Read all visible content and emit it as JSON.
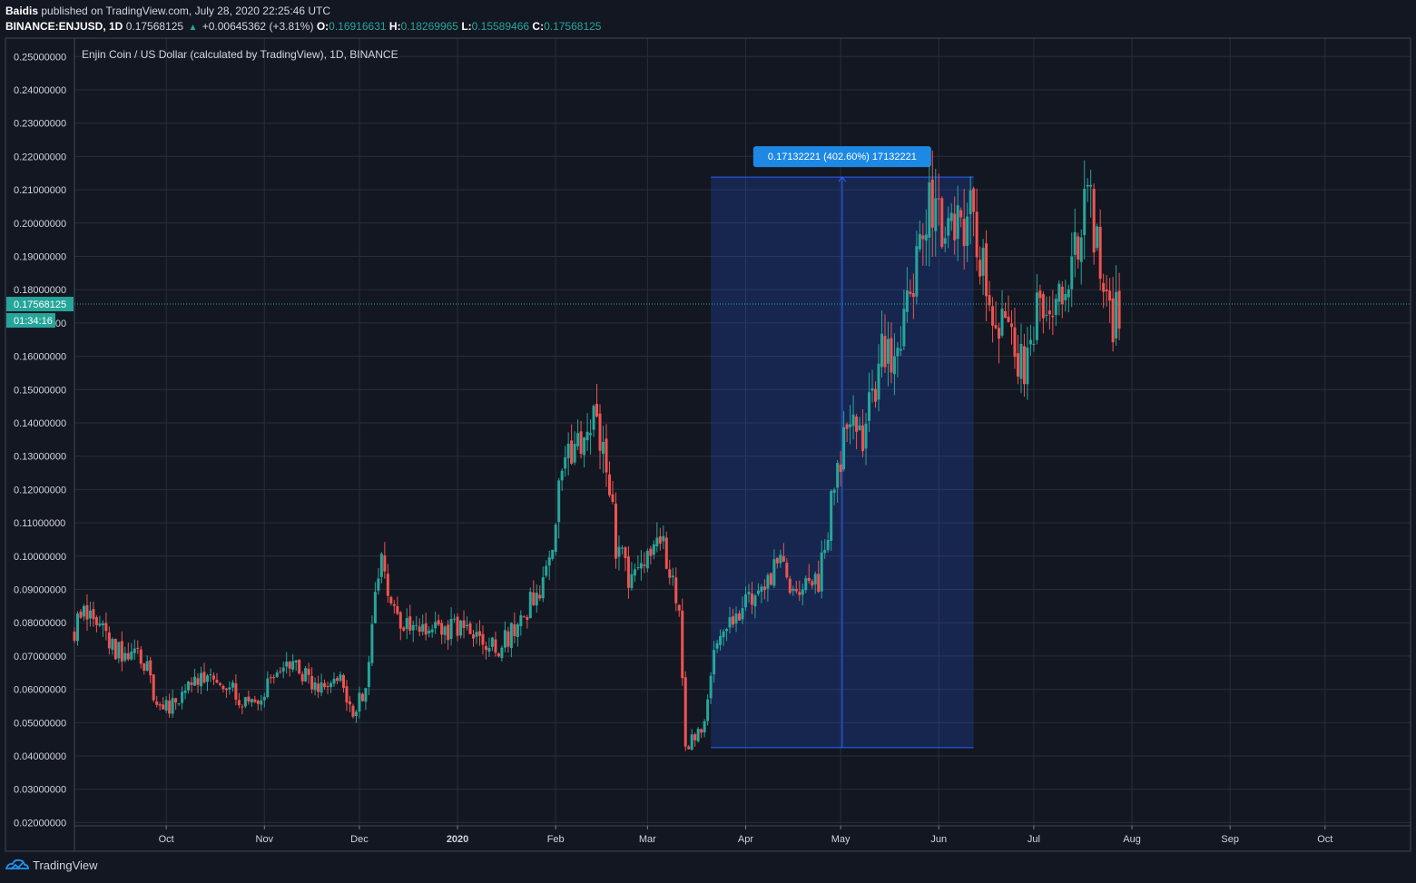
{
  "header": {
    "author": "Baidis",
    "published_text": "published on TradingView.com, July 28, 2020 22:25:46 UTC",
    "symbol": "BINANCE:ENJUSD, 1D",
    "price": "0.17568125",
    "change": "+0.00645362 (+3.81%)",
    "o_label": "O:",
    "o_value": "0.16916631",
    "h_label": "H:",
    "h_value": "0.18269965",
    "l_label": "L:",
    "l_value": "0.15589466",
    "c_label": "C:",
    "c_value": "0.17568125"
  },
  "footer": {
    "brand": "TradingView"
  },
  "colors": {
    "up": "#26a69a",
    "down": "#ef5350",
    "background": "#131722",
    "grid": "#2a2e39",
    "measure": "#2962ff"
  },
  "chart_data": {
    "type": "candlestick",
    "title": "Enjin Coin / US Dollar (calculated by TradingView), 1D, BINANCE",
    "x_labels": [
      "Oct",
      "Nov",
      "Dec",
      "2020",
      "Feb",
      "Mar",
      "Apr",
      "May",
      "Jun",
      "Jul",
      "Aug",
      "Sep",
      "Oct"
    ],
    "x_range": [
      "2019-09-02",
      "2020-10-28"
    ],
    "y_ticks": [
      "0.25000000",
      "0.24000000",
      "0.23000000",
      "0.22000000",
      "0.21000000",
      "0.20000000",
      "0.19000000",
      "0.18000000",
      "0.17000000",
      "0.16000000",
      "0.15000000",
      "0.14000000",
      "0.13000000",
      "0.12000000",
      "0.11000000",
      "0.10000000",
      "0.09000000",
      "0.08000000",
      "0.07000000",
      "0.06000000",
      "0.05000000",
      "0.04000000",
      "0.03000000",
      "0.02000000"
    ],
    "ylim": [
      0.02,
      0.25
    ],
    "current_price": "0.17568125",
    "countdown": "01:34:16",
    "measure": {
      "label": "0.17132221 (402.60%) 17132221",
      "from_date": "2020-03-21",
      "to_date": "2020-06-12",
      "low": 0.0425,
      "high": 0.2138
    },
    "grid": true,
    "price_path": [
      {
        "date": "2019-09-02",
        "price": 0.0775
      },
      {
        "date": "2019-09-05",
        "price": 0.083
      },
      {
        "date": "2019-09-09",
        "price": 0.081
      },
      {
        "date": "2019-09-15",
        "price": 0.071
      },
      {
        "date": "2019-09-22",
        "price": 0.072
      },
      {
        "date": "2019-09-25",
        "price": 0.066
      },
      {
        "date": "2019-09-28",
        "price": 0.054
      },
      {
        "date": "2019-10-03",
        "price": 0.055
      },
      {
        "date": "2019-10-07",
        "price": 0.06
      },
      {
        "date": "2019-10-14",
        "price": 0.064
      },
      {
        "date": "2019-10-20",
        "price": 0.062
      },
      {
        "date": "2019-10-25",
        "price": 0.056
      },
      {
        "date": "2019-10-30",
        "price": 0.058
      },
      {
        "date": "2019-11-05",
        "price": 0.065
      },
      {
        "date": "2019-11-12",
        "price": 0.066
      },
      {
        "date": "2019-11-18",
        "price": 0.061
      },
      {
        "date": "2019-11-24",
        "price": 0.065
      },
      {
        "date": "2019-11-29",
        "price": 0.054
      },
      {
        "date": "2019-12-03",
        "price": 0.06
      },
      {
        "date": "2019-12-05",
        "price": 0.078
      },
      {
        "date": "2019-12-08",
        "price": 0.101
      },
      {
        "date": "2019-12-12",
        "price": 0.082
      },
      {
        "date": "2019-12-18",
        "price": 0.076
      },
      {
        "date": "2019-12-25",
        "price": 0.077
      },
      {
        "date": "2020-01-01",
        "price": 0.079
      },
      {
        "date": "2020-01-08",
        "price": 0.075
      },
      {
        "date": "2020-01-14",
        "price": 0.072
      },
      {
        "date": "2020-01-20",
        "price": 0.08
      },
      {
        "date": "2020-01-25",
        "price": 0.087
      },
      {
        "date": "2020-01-30",
        "price": 0.098
      },
      {
        "date": "2020-02-04",
        "price": 0.135
      },
      {
        "date": "2020-02-08",
        "price": 0.132
      },
      {
        "date": "2020-02-13",
        "price": 0.14
      },
      {
        "date": "2020-02-17",
        "price": 0.128
      },
      {
        "date": "2020-02-20",
        "price": 0.103
      },
      {
        "date": "2020-02-24",
        "price": 0.094
      },
      {
        "date": "2020-02-29",
        "price": 0.101
      },
      {
        "date": "2020-03-04",
        "price": 0.108
      },
      {
        "date": "2020-03-07",
        "price": 0.099
      },
      {
        "date": "2020-03-11",
        "price": 0.083
      },
      {
        "date": "2020-03-13",
        "price": 0.043
      },
      {
        "date": "2020-03-16",
        "price": 0.046
      },
      {
        "date": "2020-03-19",
        "price": 0.05
      },
      {
        "date": "2020-03-22",
        "price": 0.072
      },
      {
        "date": "2020-03-28",
        "price": 0.082
      },
      {
        "date": "2020-04-05",
        "price": 0.091
      },
      {
        "date": "2020-04-12",
        "price": 0.097
      },
      {
        "date": "2020-04-18",
        "price": 0.088
      },
      {
        "date": "2020-04-24",
        "price": 0.093
      },
      {
        "date": "2020-04-29",
        "price": 0.12
      },
      {
        "date": "2020-05-03",
        "price": 0.14
      },
      {
        "date": "2020-05-08",
        "price": 0.136
      },
      {
        "date": "2020-05-14",
        "price": 0.16
      },
      {
        "date": "2020-05-18",
        "price": 0.158
      },
      {
        "date": "2020-05-22",
        "price": 0.172
      },
      {
        "date": "2020-05-26",
        "price": 0.2
      },
      {
        "date": "2020-05-29",
        "price": 0.207
      },
      {
        "date": "2020-06-03",
        "price": 0.2
      },
      {
        "date": "2020-06-07",
        "price": 0.198
      },
      {
        "date": "2020-06-11",
        "price": 0.205
      },
      {
        "date": "2020-06-15",
        "price": 0.185
      },
      {
        "date": "2020-06-20",
        "price": 0.17
      },
      {
        "date": "2020-06-26",
        "price": 0.16
      },
      {
        "date": "2020-06-28",
        "price": 0.155
      },
      {
        "date": "2020-07-02",
        "price": 0.172
      },
      {
        "date": "2020-07-07",
        "price": 0.177
      },
      {
        "date": "2020-07-12",
        "price": 0.18
      },
      {
        "date": "2020-07-16",
        "price": 0.2
      },
      {
        "date": "2020-07-19",
        "price": 0.205
      },
      {
        "date": "2020-07-22",
        "price": 0.19
      },
      {
        "date": "2020-07-26",
        "price": 0.169
      },
      {
        "date": "2020-07-28",
        "price": 0.1757
      }
    ]
  }
}
